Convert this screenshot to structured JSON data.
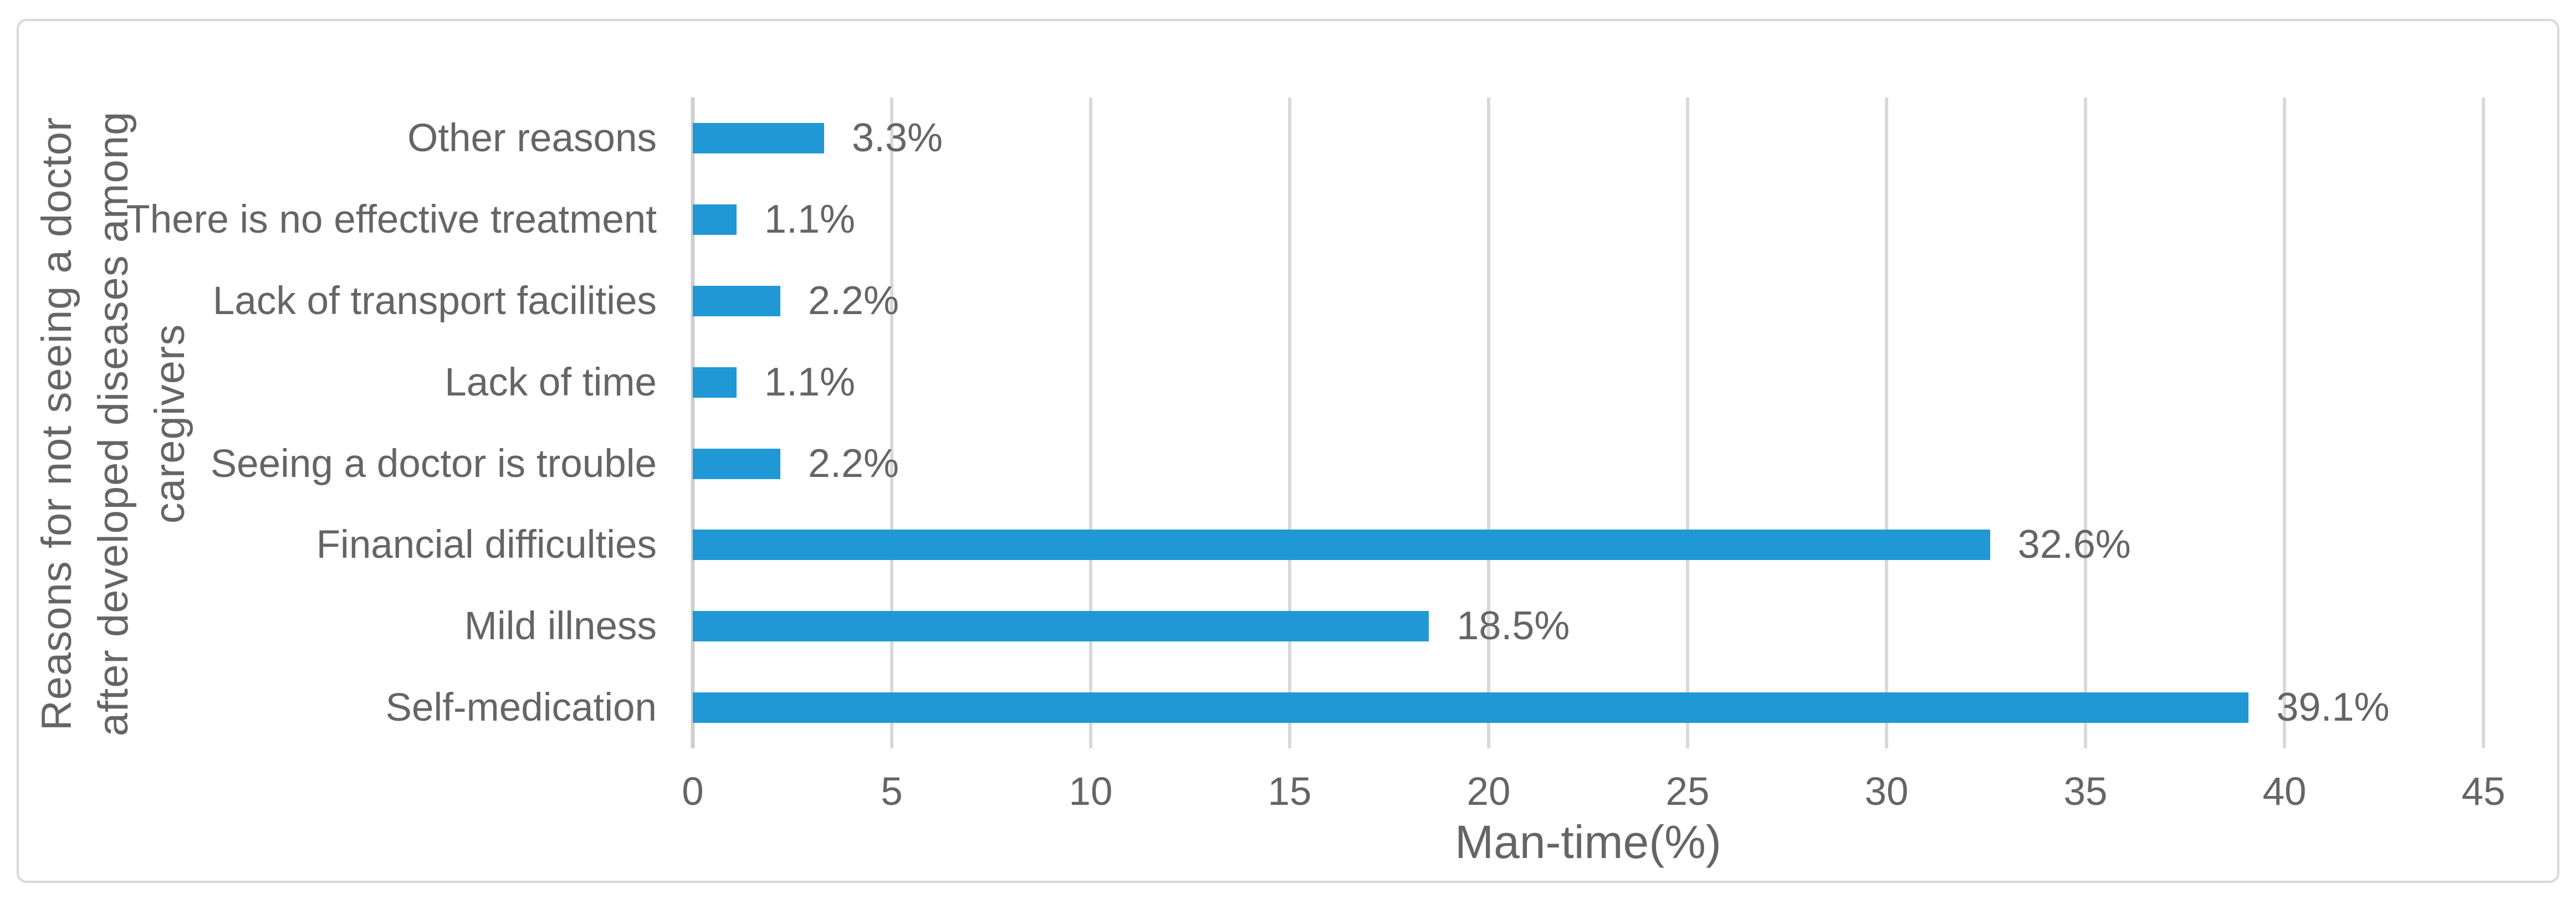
{
  "chart_data": {
    "type": "bar",
    "orientation": "horizontal",
    "categories": [
      "Other reasons",
      "There is no effective treatment",
      "Lack of transport facilities",
      "Lack of time",
      "Seeing a doctor is trouble",
      "Financial difficulties",
      "Mild illness",
      "Self-medication"
    ],
    "values": [
      3.3,
      1.1,
      2.2,
      1.1,
      2.2,
      32.6,
      18.5,
      39.1
    ],
    "value_labels": [
      "3.3%",
      "1.1%",
      "2.2%",
      "1.1%",
      "2.2%",
      "32.6%",
      "18.5%",
      "39.1%"
    ],
    "xlabel": "Man-time(%)",
    "ylabel_lines": [
      "Reasons for not seeing a doctor",
      "after developed diseases among",
      "caregivers"
    ],
    "xlim": [
      0,
      45
    ],
    "xticks": [
      0,
      5,
      10,
      15,
      20,
      25,
      30,
      35,
      40,
      45
    ],
    "grid": true,
    "legend": false,
    "colors": {
      "bar": "#2098D5",
      "gridline": "#D9D9D9",
      "axis_line": "#CFCFCF",
      "text": "#656565",
      "frame_border": "#D9D9D9",
      "background": "#FFFFFF"
    }
  }
}
